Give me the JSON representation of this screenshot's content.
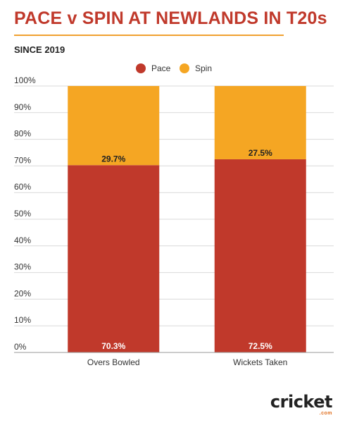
{
  "title": "PACE v SPIN AT NEWLANDS IN T20s",
  "subtitle": "SINCE 2019",
  "brand": {
    "main": "cricket",
    "sub": ".com"
  },
  "colors": {
    "pace": "#c0392b",
    "spin": "#f5a623",
    "title": "#c0392b",
    "rule": "#f0a030"
  },
  "chart_data": {
    "type": "bar",
    "stacked": true,
    "categories": [
      "Overs Bowled",
      "Wickets Taken"
    ],
    "series": [
      {
        "name": "Pace",
        "values": [
          70.3,
          72.5
        ],
        "labels": [
          "70.3%",
          "72.5%"
        ],
        "color": "#c0392b"
      },
      {
        "name": "Spin",
        "values": [
          29.7,
          27.5
        ],
        "labels": [
          "29.7%",
          "27.5%"
        ],
        "color": "#f5a623"
      }
    ],
    "ylim": [
      0,
      100
    ],
    "yticks": [
      "0%",
      "10%",
      "20%",
      "30%",
      "40%",
      "50%",
      "60%",
      "70%",
      "80%",
      "90%",
      "100%"
    ],
    "legend_position": "top-center",
    "grid": true
  }
}
